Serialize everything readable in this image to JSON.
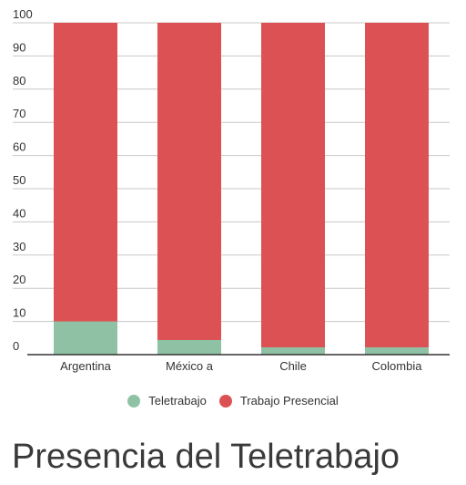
{
  "title": "Presencia del Teletrabajo",
  "legend": {
    "items": [
      {
        "label": "Teletrabajo",
        "color": "#8fc2a5"
      },
      {
        "label": "Trabajo Presencial",
        "color": "#dc5254"
      }
    ]
  },
  "chart_data": {
    "type": "bar",
    "stacked": true,
    "categories": [
      "Argentina",
      "México a",
      "Chile",
      "Colombia"
    ],
    "series": [
      {
        "name": "Teletrabajo",
        "color": "#8fc2a5",
        "values": [
          10,
          4.4,
          2.2,
          2.2
        ]
      },
      {
        "name": "Trabajo Presencial",
        "color": "#dc5254",
        "values": [
          90,
          95.6,
          97.8,
          97.8
        ]
      }
    ],
    "ylim": [
      0,
      100
    ],
    "yticks": [
      0,
      10,
      20,
      30,
      40,
      50,
      60,
      70,
      80,
      90,
      100
    ],
    "grid": true,
    "legend_position": "bottom",
    "title": "Presencia del Teletrabajo",
    "xlabel": "",
    "ylabel": ""
  }
}
